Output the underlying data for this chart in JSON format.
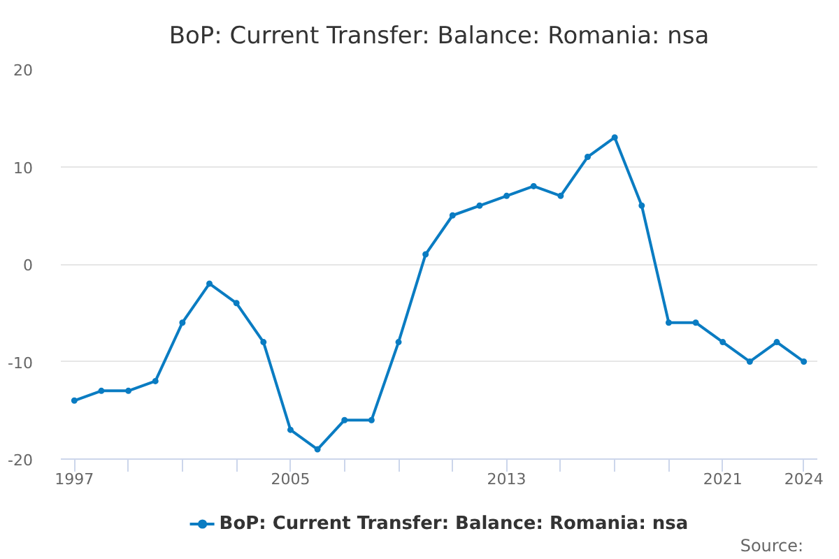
{
  "chart_data": {
    "type": "line",
    "title": "BoP: Current Transfer: Balance: Romania: nsa",
    "x": [
      1997,
      1998,
      1999,
      2000,
      2001,
      2002,
      2003,
      2004,
      2005,
      2006,
      2007,
      2008,
      2009,
      2010,
      2011,
      2012,
      2013,
      2014,
      2015,
      2016,
      2017,
      2018,
      2019,
      2020,
      2021,
      2022,
      2023,
      2024
    ],
    "series": [
      {
        "name": "BoP: Current Transfer: Balance: Romania: nsa",
        "color": "#0a7cc2",
        "values": [
          -14,
          -13,
          -13,
          -12,
          -6,
          -2,
          -4,
          -8,
          -17,
          -19,
          -16,
          -16,
          -8,
          1,
          5,
          6,
          7,
          8,
          7,
          11,
          13,
          6,
          -6,
          -6,
          -8,
          -10,
          -8,
          -10
        ]
      }
    ],
    "xlim": [
      1996.5,
      2024.5
    ],
    "ylim": [
      -20,
      20
    ],
    "xticks": [
      1997,
      {
        "value": 1999,
        "label": null
      },
      {
        "value": 2001,
        "label": null
      },
      {
        "value": 2003,
        "label": null
      },
      2005,
      {
        "value": 2007,
        "label": null
      },
      {
        "value": 2009,
        "label": null
      },
      {
        "value": 2011,
        "label": null
      },
      2013,
      {
        "value": 2015,
        "label": null
      },
      {
        "value": 2017,
        "label": null
      },
      {
        "value": 2019,
        "label": null
      },
      2021,
      2024
    ],
    "yticks": [
      -20,
      -10,
      0,
      10,
      20
    ],
    "grid": "y",
    "legend": "bottom",
    "marker": "circle",
    "line_style": "solid",
    "annotations": [
      "Source:"
    ]
  }
}
